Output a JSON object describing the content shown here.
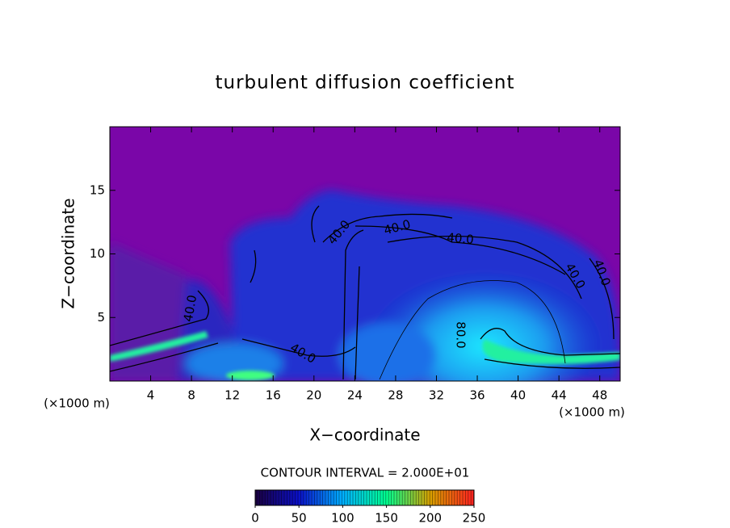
{
  "chart_data": {
    "type": "contour",
    "title": "turbulent diffusion coefficient",
    "xlabel": "X−coordinate",
    "ylabel": "Z−coordinate",
    "x_unit_label": "(×1000 m)",
    "y_unit_label": "(×1000 m)",
    "xlim": [
      0,
      50
    ],
    "xticks": [
      4,
      8,
      12,
      16,
      20,
      24,
      28,
      32,
      36,
      40,
      44,
      48
    ],
    "ylim": [
      0,
      20
    ],
    "yticks": [
      5,
      10,
      15
    ],
    "contour_labels": [
      "40.0",
      "40.0",
      "40.0",
      "40.0",
      "40.0",
      "40.0",
      "40.0",
      "80.0"
    ],
    "contour_interval_text": "CONTOUR INTERVAL = 2.000E+01",
    "clim": [
      0,
      250
    ],
    "cticks": [
      0,
      50,
      100,
      150,
      200,
      250
    ],
    "colormap": [
      "#1a0040",
      "#0a10c8",
      "#00b0ff",
      "#00ff90",
      "#d8a000",
      "#ff2020"
    ]
  }
}
